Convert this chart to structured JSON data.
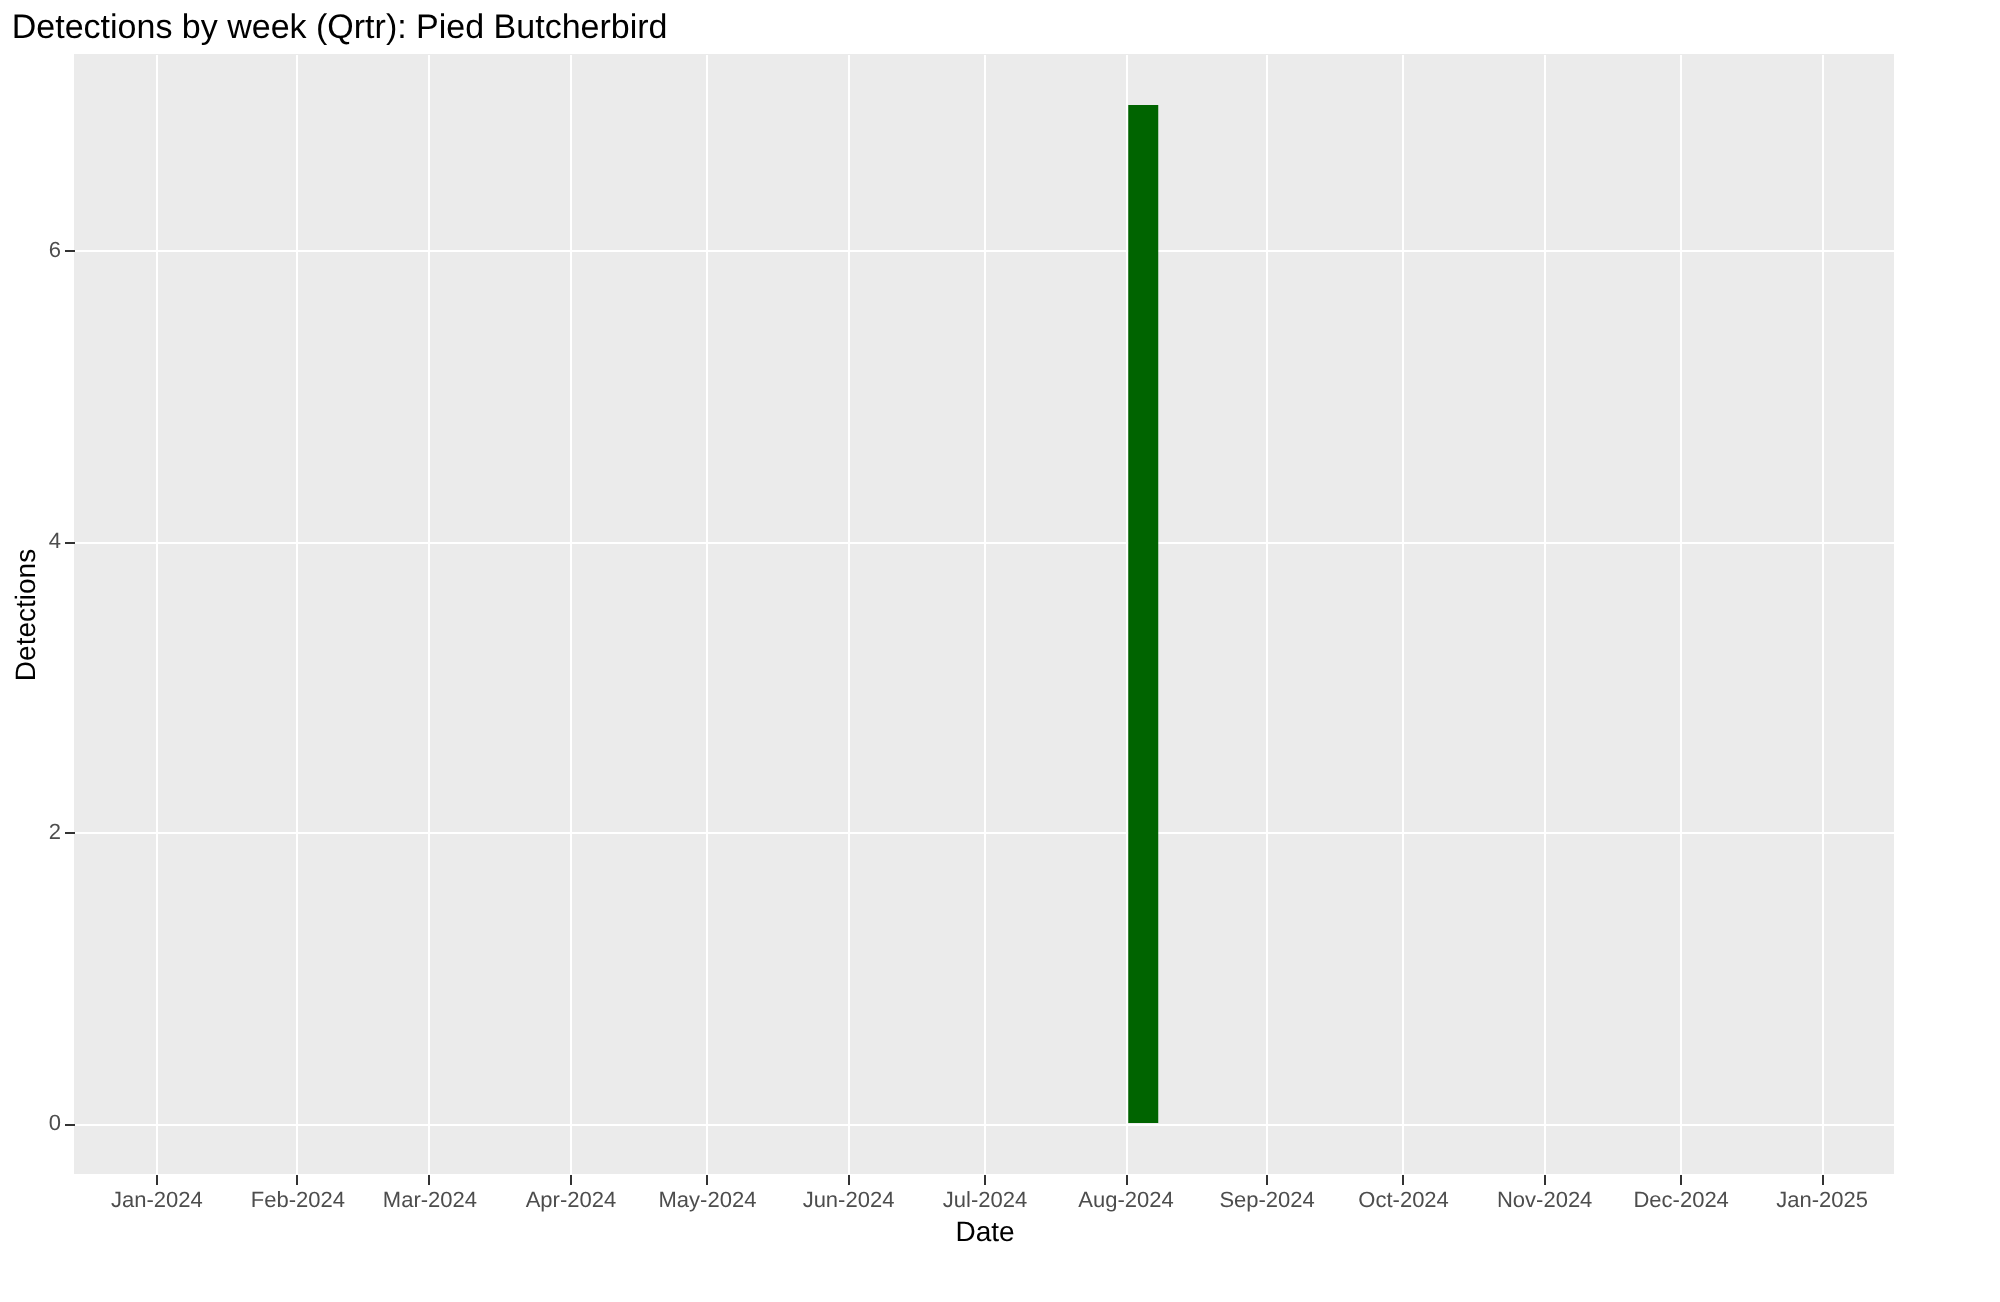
{
  "chart_data": {
    "type": "bar",
    "title": "Detections by week (Qrtr): Pied Butcherbird",
    "xlabel": "Date",
    "ylabel": "Detections",
    "x": [
      "2024-08-05"
    ],
    "series": [
      {
        "color": "#006400",
        "values": [
          7
        ]
      }
    ],
    "xlim": [
      "2023-12-14",
      "2025-01-17"
    ],
    "xticks": [
      {
        "value": "2024-01-01",
        "label": "Jan-2024"
      },
      {
        "value": "2024-02-01",
        "label": "Feb-2024"
      },
      {
        "value": "2024-03-01",
        "label": "Mar-2024"
      },
      {
        "value": "2024-04-01",
        "label": "Apr-2024"
      },
      {
        "value": "2024-05-01",
        "label": "May-2024"
      },
      {
        "value": "2024-06-01",
        "label": "Jun-2024"
      },
      {
        "value": "2024-07-01",
        "label": "Jul-2024"
      },
      {
        "value": "2024-08-01",
        "label": "Aug-2024"
      },
      {
        "value": "2024-09-01",
        "label": "Sep-2024"
      },
      {
        "value": "2024-10-01",
        "label": "Oct-2024"
      },
      {
        "value": "2024-11-01",
        "label": "Nov-2024"
      },
      {
        "value": "2024-12-01",
        "label": "Dec-2024"
      },
      {
        "value": "2025-01-01",
        "label": "Jan-2025"
      }
    ],
    "ylim": [
      -0.35,
      7.35
    ],
    "yticks": [
      0,
      2,
      4,
      6
    ],
    "grid": true
  }
}
